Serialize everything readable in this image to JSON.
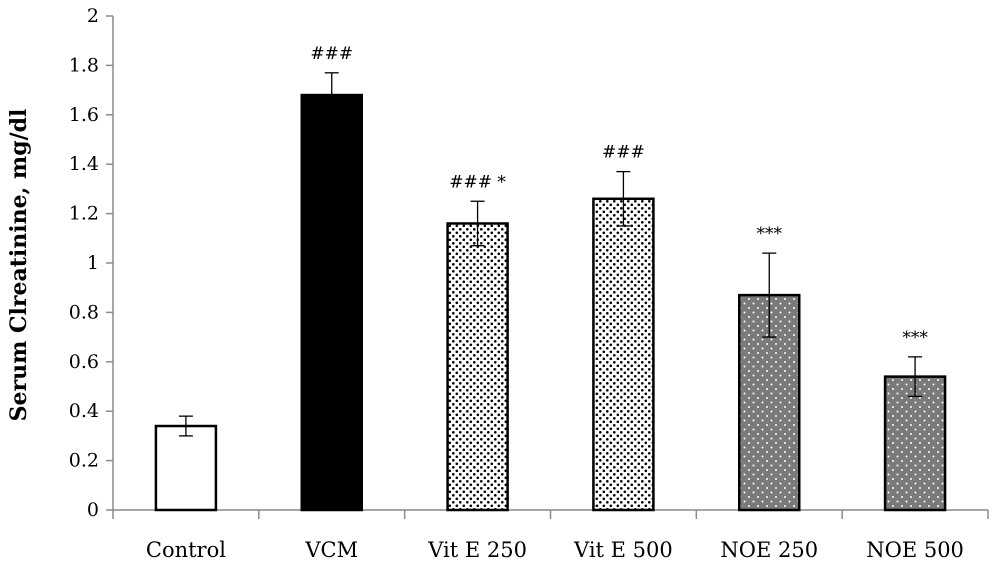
{
  "chart_data": {
    "type": "bar",
    "title": "",
    "xlabel": "",
    "ylabel": "Serum Clreatinine, mg/dl",
    "ylim": [
      0,
      2
    ],
    "yticks": [
      0,
      0.2,
      0.4,
      0.6,
      0.8,
      1,
      1.2,
      1.4,
      1.6,
      1.8,
      2
    ],
    "ytick_labels": [
      "0",
      "0.2",
      "0.4",
      "0.6",
      "0.8",
      "1",
      "1.2",
      "1.4",
      "1.6",
      "1.8",
      "2"
    ],
    "grid": false,
    "legend": "none",
    "categories": [
      "Control",
      "VCM",
      "Vit E 250",
      "Vit E 500",
      "NOE 250",
      "NOE 500"
    ],
    "values": [
      0.34,
      1.68,
      1.16,
      1.26,
      0.87,
      0.54
    ],
    "errors": [
      0.04,
      0.09,
      0.09,
      0.11,
      0.17,
      0.08
    ],
    "annotations": [
      "",
      "###",
      "### *",
      "###",
      "***",
      "***"
    ],
    "fills": [
      "white",
      "black",
      "dense-dots",
      "dense-dots",
      "gray-white-dots",
      "gray-white-dots"
    ],
    "colors": {
      "outline": "#000000",
      "gray": "#7a7a7a",
      "black": "#000000",
      "white": "#ffffff"
    }
  }
}
